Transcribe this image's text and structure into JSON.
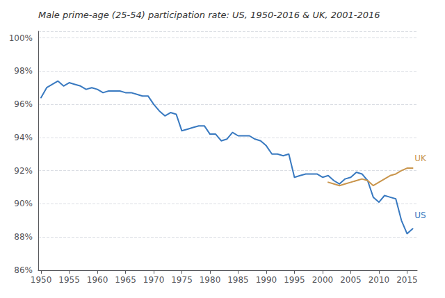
{
  "chart_data": {
    "type": "line",
    "title": "Male prime-age (25-54) participation rate: US, 1950-2016 & UK, 2001-2016",
    "series": [
      {
        "color": "#3879c0",
        "x": [
          1950,
          1951,
          1952,
          1953,
          1954,
          1955,
          1956,
          1957,
          1958,
          1959,
          1960,
          1961,
          1962,
          1963,
          1964,
          1965,
          1966,
          1967,
          1968,
          1969,
          1970,
          1971,
          1972,
          1973,
          1974,
          1975,
          1976,
          1977,
          1978,
          1979,
          1980,
          1981,
          1982,
          1983,
          1984,
          1985,
          1986,
          1987,
          1988,
          1989,
          1990,
          1991,
          1992,
          1993,
          1994,
          1995,
          1996,
          1997,
          1998,
          1999,
          2000,
          2001,
          2002,
          2003,
          2004,
          2005,
          2006,
          2007,
          2008,
          2009,
          2010,
          2011,
          2012,
          2013,
          2014,
          2015,
          2016
        ],
        "values": [
          96.4,
          97.0,
          97.2,
          97.4,
          97.1,
          97.3,
          97.2,
          97.1,
          96.9,
          97.0,
          96.9,
          96.7,
          96.8,
          96.8,
          96.8,
          96.7,
          96.7,
          96.6,
          96.5,
          96.5,
          96.0,
          95.6,
          95.3,
          95.5,
          95.4,
          94.4,
          94.5,
          94.6,
          94.7,
          94.7,
          94.2,
          94.2,
          93.8,
          93.9,
          94.3,
          94.1,
          94.1,
          94.1,
          93.9,
          93.8,
          93.5,
          93.0,
          93.0,
          92.9,
          93.0,
          91.6,
          91.7,
          91.8,
          91.8,
          91.8,
          91.6,
          91.7,
          91.4,
          91.2,
          91.5,
          91.6,
          91.9,
          91.8,
          91.4,
          90.4,
          90.1,
          90.5,
          90.4,
          90.3,
          89.0,
          88.2,
          88.5
        ]
      },
      {
        "color": "#c9954c",
        "x": [
          2001,
          2002,
          2003,
          2004,
          2005,
          2006,
          2007,
          2008,
          2009,
          2010,
          2011,
          2012,
          2013,
          2014,
          2015,
          2016
        ],
        "values": [
          91.3,
          91.2,
          91.1,
          91.2,
          91.3,
          91.4,
          91.5,
          91.4,
          91.1,
          91.3,
          91.5,
          91.7,
          91.8,
          92.0,
          92.15,
          92.15
        ]
      }
    ],
    "annotations": [
      {
        "text": "UK",
        "x": 2016.1,
        "y": 92.75,
        "color": "#c9954c"
      },
      {
        "text": "US",
        "x": 2016.1,
        "y": 89.3,
        "color": "#3879c0"
      }
    ],
    "xlim": [
      1949.5,
      2016.8
    ],
    "xticks": [
      1950,
      1955,
      1960,
      1965,
      1970,
      1975,
      1980,
      1985,
      1990,
      1995,
      2000,
      2005,
      2010,
      2015
    ],
    "ylim": [
      86.0,
      100.4
    ],
    "yticks": [
      {
        "value": 86,
        "label": "86%"
      },
      {
        "value": 88,
        "label": "88%"
      },
      {
        "value": 90,
        "label": "90%"
      },
      {
        "value": 92,
        "label": "92%"
      },
      {
        "value": 94,
        "label": "94%"
      },
      {
        "value": 96,
        "label": "96%"
      },
      {
        "value": 98,
        "label": "98%"
      },
      {
        "value": 100,
        "label": "100%"
      }
    ],
    "grid": true
  }
}
